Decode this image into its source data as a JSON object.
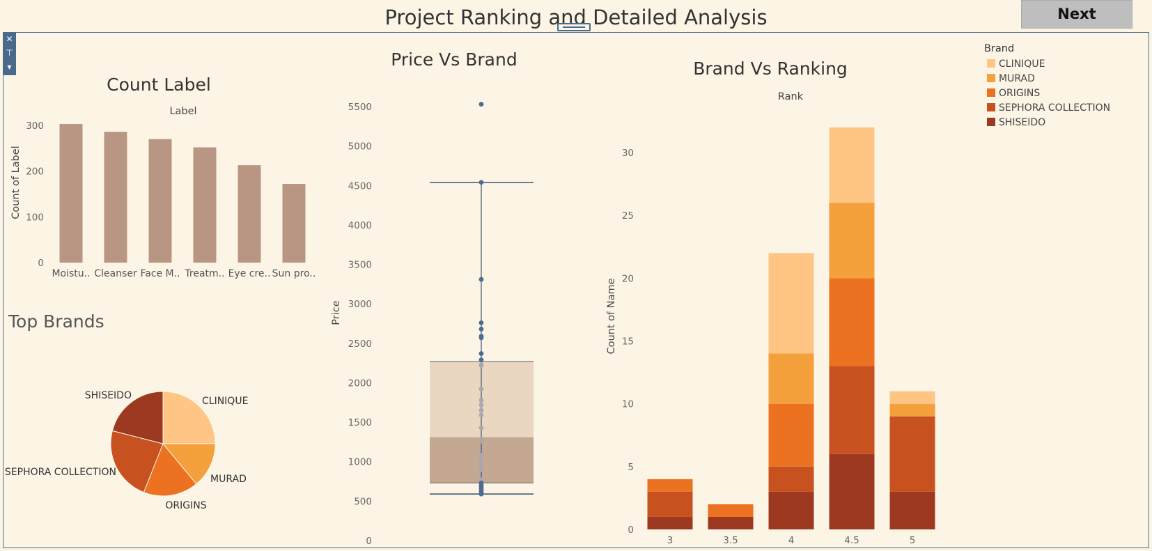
{
  "header": {
    "title": "Project Ranking and Detailed Analysis",
    "next_label": "Next"
  },
  "colors": {
    "background": "#fcf5e6",
    "bar": "#b99684",
    "CLINIQUE": "#ffc585",
    "MURAD": "#f4a03c",
    "ORIGINS": "#ec7121",
    "SEPHORA COLLECTION": "#c75220",
    "SHISEIDO": "#9c3920",
    "box_upper": "#ead7c1",
    "box_lower": "#c4a892",
    "whisker": "#3e5573",
    "point": "#4d6b8f"
  },
  "chart_data": [
    {
      "id": "count-label",
      "type": "bar",
      "title": "Count Label",
      "header": "Label",
      "ylabel": "Count of Label",
      "categories": [
        "Moistu..",
        "Cleanser",
        "Face M..",
        "Treatm..",
        "Eye cre..",
        "Sun pro.."
      ],
      "values": [
        303,
        286,
        270,
        252,
        213,
        172
      ],
      "yticks": [
        0,
        100,
        200,
        300
      ],
      "ylim": [
        0,
        320
      ]
    },
    {
      "id": "top-brands",
      "type": "pie",
      "title": "Top Brands",
      "labels": [
        "CLINIQUE",
        "MURAD",
        "ORIGINS",
        "SEPHORA COLLECTION",
        "SHISEIDO"
      ],
      "values": [
        25,
        14,
        17,
        23,
        21
      ]
    },
    {
      "id": "price-vs-brand",
      "type": "scatter",
      "title": "Price Vs Brand",
      "ylabel": "Price",
      "yticks": [
        0,
        500,
        1000,
        1500,
        2000,
        2500,
        3000,
        3500,
        4000,
        4500,
        5000,
        5500
      ],
      "ylim": [
        0,
        5750
      ],
      "box": {
        "whisker_low": 590,
        "q1": 730,
        "median": 1310,
        "q3": 2270,
        "whisker_high": 4540
      },
      "points": [
        5530,
        4540,
        3310,
        2760,
        2680,
        2590,
        2570,
        2370,
        2290,
        2230,
        2220,
        1920,
        1780,
        1720,
        1650,
        1590,
        1430,
        1280,
        1260,
        1080,
        1050,
        990,
        940,
        900,
        770,
        730,
        700,
        680,
        660,
        630,
        610,
        590
      ]
    },
    {
      "id": "brand-vs-ranking",
      "type": "bar",
      "stacked": true,
      "title": "Brand Vs Ranking",
      "header": "Rank",
      "ylabel": "Count of Name",
      "categories": [
        "3",
        "3.5",
        "4",
        "4.5",
        "5"
      ],
      "yticks": [
        0,
        5,
        10,
        15,
        20,
        25,
        30
      ],
      "ylim": [
        0,
        32
      ],
      "legend_title": "Brand",
      "legend_position": "top-right",
      "series": [
        {
          "name": "SHISEIDO",
          "values": [
            1,
            1,
            3,
            6,
            3
          ]
        },
        {
          "name": "SEPHORA COLLECTION",
          "values": [
            2,
            0,
            2,
            7,
            6
          ]
        },
        {
          "name": "ORIGINS",
          "values": [
            1,
            1,
            5,
            7,
            0
          ]
        },
        {
          "name": "MURAD",
          "values": [
            0,
            0,
            4,
            6,
            1
          ]
        },
        {
          "name": "CLINIQUE",
          "values": [
            0,
            0,
            8,
            6,
            1
          ]
        }
      ]
    }
  ]
}
